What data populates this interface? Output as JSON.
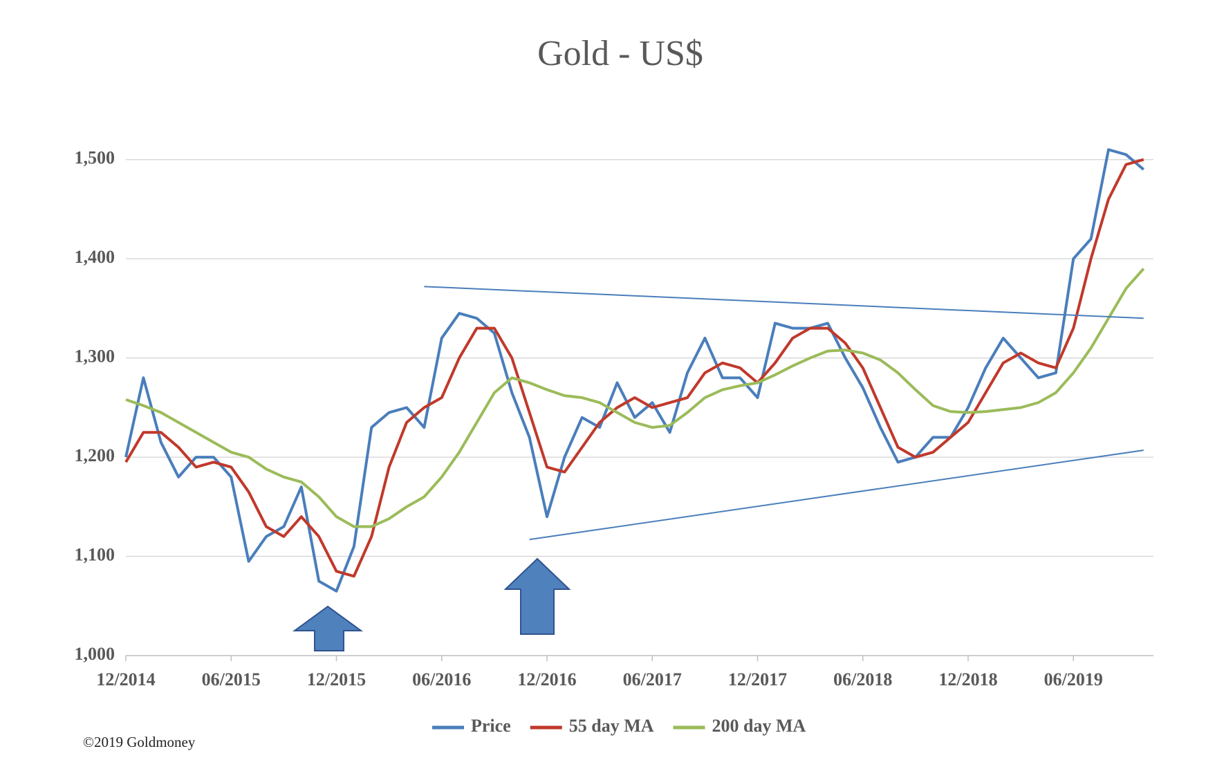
{
  "chart_data": {
    "type": "line",
    "title": "Gold - US$",
    "x": [
      "12/2014",
      "01/2015",
      "02/2015",
      "03/2015",
      "04/2015",
      "05/2015",
      "06/2015",
      "07/2015",
      "08/2015",
      "09/2015",
      "10/2015",
      "11/2015",
      "12/2015",
      "01/2016",
      "02/2016",
      "03/2016",
      "04/2016",
      "05/2016",
      "06/2016",
      "07/2016",
      "08/2016",
      "09/2016",
      "10/2016",
      "11/2016",
      "12/2016",
      "01/2017",
      "02/2017",
      "03/2017",
      "04/2017",
      "05/2017",
      "06/2017",
      "07/2017",
      "08/2017",
      "09/2017",
      "10/2017",
      "11/2017",
      "12/2017",
      "01/2018",
      "02/2018",
      "03/2018",
      "04/2018",
      "05/2018",
      "06/2018",
      "07/2018",
      "08/2018",
      "09/2018",
      "10/2018",
      "11/2018",
      "12/2018",
      "01/2019",
      "02/2019",
      "03/2019",
      "04/2019",
      "05/2019",
      "06/2019",
      "07/2019",
      "08/2019",
      "09/2019",
      "10/2019"
    ],
    "series": [
      {
        "name": "Price",
        "color": "#4a7ebb",
        "values": [
          1200,
          1280,
          1215,
          1180,
          1200,
          1200,
          1180,
          1095,
          1120,
          1130,
          1170,
          1075,
          1065,
          1110,
          1230,
          1245,
          1250,
          1230,
          1320,
          1345,
          1340,
          1325,
          1265,
          1220,
          1140,
          1200,
          1240,
          1230,
          1275,
          1240,
          1255,
          1225,
          1285,
          1320,
          1280,
          1280,
          1260,
          1335,
          1330,
          1330,
          1335,
          1300,
          1270,
          1230,
          1195,
          1200,
          1220,
          1220,
          1250,
          1290,
          1320,
          1300,
          1280,
          1285,
          1400,
          1420,
          1510,
          1505,
          1490
        ]
      },
      {
        "name": "55 day MA",
        "color": "#c0392b",
        "values": [
          1195,
          1225,
          1225,
          1210,
          1190,
          1195,
          1190,
          1165,
          1130,
          1120,
          1140,
          1120,
          1085,
          1080,
          1120,
          1190,
          1235,
          1250,
          1260,
          1300,
          1330,
          1330,
          1300,
          1245,
          1190,
          1185,
          1210,
          1235,
          1250,
          1260,
          1250,
          1255,
          1260,
          1285,
          1295,
          1290,
          1275,
          1295,
          1320,
          1330,
          1330,
          1315,
          1290,
          1250,
          1210,
          1200,
          1205,
          1220,
          1235,
          1265,
          1295,
          1305,
          1295,
          1290,
          1330,
          1400,
          1460,
          1495,
          1500
        ]
      },
      {
        "name": "200 day MA",
        "color": "#9bbb59",
        "values": [
          1258,
          1252,
          1245,
          1235,
          1225,
          1215,
          1205,
          1200,
          1188,
          1180,
          1175,
          1160,
          1140,
          1130,
          1130,
          1138,
          1150,
          1160,
          1180,
          1205,
          1235,
          1265,
          1280,
          1275,
          1268,
          1262,
          1260,
          1255,
          1245,
          1235,
          1230,
          1232,
          1245,
          1260,
          1268,
          1272,
          1275,
          1283,
          1292,
          1300,
          1307,
          1308,
          1305,
          1298,
          1285,
          1268,
          1252,
          1246,
          1245,
          1246,
          1248,
          1250,
          1255,
          1265,
          1285,
          1310,
          1340,
          1370,
          1390
        ]
      }
    ],
    "trend_lines": [
      {
        "x": [
          "05/2016",
          "10/2019"
        ],
        "y": [
          1372,
          1340
        ],
        "color": "#4a7ebb"
      },
      {
        "x": [
          "11/2016",
          "10/2019"
        ],
        "y": [
          1117,
          1207
        ],
        "color": "#4a7ebb"
      }
    ],
    "xticks": [
      "12/2014",
      "06/2015",
      "12/2015",
      "06/2016",
      "12/2016",
      "06/2017",
      "12/2017",
      "06/2018",
      "12/2018",
      "06/2019"
    ],
    "ylim": [
      1000,
      1550
    ],
    "yticks": [
      {
        "value": 1000,
        "label": "1,000"
      },
      {
        "value": 1100,
        "label": "1,100"
      },
      {
        "value": 1200,
        "label": "1,200"
      },
      {
        "value": 1300,
        "label": "1,300"
      },
      {
        "value": 1400,
        "label": "1,400"
      },
      {
        "value": 1500,
        "label": "1,500"
      }
    ],
    "grid": true,
    "legend": "bottom",
    "footnote": "©2019 Goldmoney"
  }
}
